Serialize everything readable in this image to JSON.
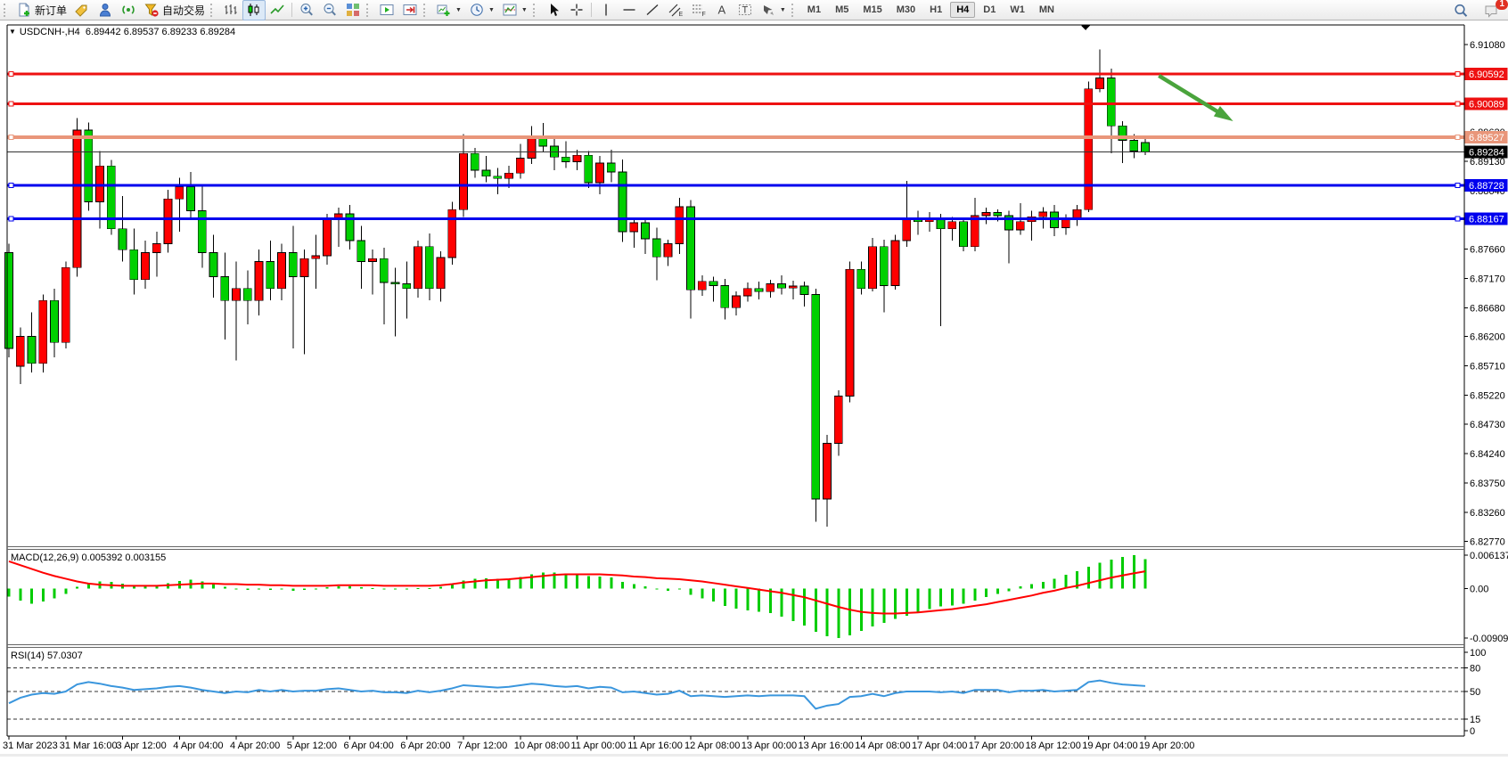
{
  "toolbar": {
    "new_order_label": "新订单",
    "autotrading_label": "自动交易",
    "periods": [
      "M1",
      "M5",
      "M15",
      "M30",
      "H1",
      "H4",
      "D1",
      "W1",
      "MN"
    ],
    "active_period": "H4",
    "notification_badge": "1",
    "icon_names": [
      "new-order",
      "quotes-tag",
      "community",
      "signals",
      "autotrading",
      "bar-chart-type",
      "candlestick-chart-type",
      "line-chart-type",
      "zoom-in",
      "zoom-out",
      "tile-windows",
      "auto-scroll",
      "chart-shift",
      "new-chart",
      "timeframe-clock",
      "indicators",
      "cursor",
      "crosshair",
      "vertical-line",
      "horizontal-line",
      "trendline",
      "equidistant-channel",
      "fibonacci",
      "text",
      "text-label",
      "arrows",
      "search",
      "chat"
    ]
  },
  "chart": {
    "title": "USDCNH-,H4",
    "ohlc_line": "6.89442 6.89537 6.89233 6.89284",
    "macd_label": "MACD(12,26,9) 0.005392 0.003155",
    "rsi_label": "RSI(14) 57.0307"
  },
  "price_axis": {
    "ticks": [
      {
        "label": "6.91080",
        "price": 6.9108
      },
      {
        "label": "6.89620",
        "price": 6.8962
      },
      {
        "label": "6.89130",
        "price": 6.8913
      },
      {
        "label": "6.88640",
        "price": 6.8864
      },
      {
        "label": "6.87660",
        "price": 6.8766
      },
      {
        "label": "6.87170",
        "price": 6.8717
      },
      {
        "label": "6.86680",
        "price": 6.8668
      },
      {
        "label": "6.86200",
        "price": 6.862
      },
      {
        "label": "6.85710",
        "price": 6.8571
      },
      {
        "label": "6.85220",
        "price": 6.8522
      },
      {
        "label": "6.84730",
        "price": 6.8473
      },
      {
        "label": "6.84240",
        "price": 6.8424
      },
      {
        "label": "6.83750",
        "price": 6.8375
      },
      {
        "label": "6.83260",
        "price": 6.8326
      },
      {
        "label": "6.82770",
        "price": 6.8277
      }
    ]
  },
  "hlines": [
    {
      "label": "6.90592",
      "price": 6.90592,
      "color": "#ee1111",
      "width": 3
    },
    {
      "label": "6.90089",
      "price": 6.90089,
      "color": "#ee1111",
      "width": 3
    },
    {
      "label": "6.89527",
      "price": 6.89527,
      "color": "#e9967a",
      "width": 4
    },
    {
      "label": "6.88728",
      "price": 6.88728,
      "color": "#0000ee",
      "width": 3
    },
    {
      "label": "6.88167",
      "price": 6.88167,
      "color": "#0000ee",
      "width": 3
    }
  ],
  "current_price": {
    "label": "6.89284",
    "price": 6.89284
  },
  "time_axis": {
    "every_n_candles": 5,
    "labels": [
      "31 Mar 2023",
      "31 Mar 16:00",
      "3 Apr 12:00",
      "4 Apr 04:00",
      "4 Apr 20:00",
      "5 Apr 12:00",
      "6 Apr 04:00",
      "6 Apr 20:00",
      "7 Apr 12:00",
      "10 Apr 08:00",
      "11 Apr 00:00",
      "11 Apr 16:00",
      "12 Apr 08:00",
      "13 Apr 00:00",
      "13 Apr 16:00",
      "14 Apr 08:00",
      "17 Apr 04:00",
      "17 Apr 20:00",
      "18 Apr 12:00",
      "19 Apr 04:00",
      "19 Apr 20:00"
    ]
  },
  "macd_axis": {
    "ticks": [
      {
        "label": "0.006137",
        "value": 0.006137
      },
      {
        "label": "0.00",
        "value": 0
      },
      {
        "label": "-0.009098",
        "value": -0.009098
      }
    ]
  },
  "rsi_axis": {
    "ticks": [
      {
        "label": "100",
        "value": 100
      },
      {
        "label": "80",
        "value": 80
      },
      {
        "label": "50",
        "value": 50
      },
      {
        "label": "15",
        "value": 15
      },
      {
        "label": "0",
        "value": 0
      }
    ],
    "dashed_levels": [
      80,
      50,
      15
    ]
  },
  "chart_data": {
    "type": "candlestick",
    "symbol": "USDCNH",
    "timeframe": "H4",
    "title": "USDCNH-,H4",
    "ylim": [
      6.82706,
      6.91408
    ],
    "grid": false,
    "colors": {
      "up": "#ff0000",
      "down": "#00d000",
      "wick": "#000000",
      "macd_hist": "#00cc00",
      "macd_signal": "#ff0000",
      "rsi": "#3a96dd",
      "axis": "#000000"
    },
    "candles": [
      [
        6.876,
        6.8775,
        6.8585,
        6.86
      ],
      [
        6.857,
        6.8635,
        6.854,
        6.862
      ],
      [
        6.862,
        6.866,
        6.856,
        6.8575
      ],
      [
        6.8575,
        6.869,
        6.856,
        6.868
      ],
      [
        6.868,
        6.87,
        6.8585,
        6.861
      ],
      [
        6.861,
        6.8745,
        6.86,
        6.8735
      ],
      [
        6.8735,
        6.8985,
        6.872,
        6.8965
      ],
      [
        6.8965,
        6.8978,
        6.883,
        6.8845
      ],
      [
        6.8845,
        6.893,
        6.88,
        6.8905
      ],
      [
        6.8905,
        6.8915,
        6.879,
        6.88
      ],
      [
        6.88,
        6.8855,
        6.8745,
        6.8765
      ],
      [
        6.8765,
        6.88,
        6.869,
        6.8715
      ],
      [
        6.8715,
        6.878,
        6.87,
        6.876
      ],
      [
        6.876,
        6.8795,
        6.872,
        6.8775
      ],
      [
        6.8775,
        6.8865,
        6.876,
        6.885
      ],
      [
        6.885,
        6.8885,
        6.8795,
        6.887
      ],
      [
        6.887,
        6.8895,
        6.8815,
        6.883
      ],
      [
        6.883,
        6.887,
        6.8735,
        6.876
      ],
      [
        6.876,
        6.879,
        6.8685,
        6.872
      ],
      [
        6.872,
        6.876,
        6.8615,
        6.868
      ],
      [
        6.868,
        6.8745,
        6.858,
        6.87
      ],
      [
        6.87,
        6.873,
        6.864,
        6.868
      ],
      [
        6.868,
        6.8765,
        6.8655,
        6.8745
      ],
      [
        6.8745,
        6.878,
        6.868,
        6.87
      ],
      [
        6.87,
        6.8775,
        6.868,
        6.876
      ],
      [
        6.876,
        6.8805,
        6.86,
        6.872
      ],
      [
        6.872,
        6.8765,
        6.859,
        6.875
      ],
      [
        6.875,
        6.879,
        6.87,
        6.8755
      ],
      [
        6.8755,
        6.8825,
        6.874,
        6.8815
      ],
      [
        6.8815,
        6.8835,
        6.877,
        6.8825
      ],
      [
        6.8825,
        6.884,
        6.8765,
        6.878
      ],
      [
        6.878,
        6.8805,
        6.87,
        6.8745
      ],
      [
        6.8745,
        6.8765,
        6.869,
        6.875
      ],
      [
        6.875,
        6.8768,
        6.864,
        6.871
      ],
      [
        6.871,
        6.8735,
        6.862,
        6.8708
      ],
      [
        6.8708,
        6.8745,
        6.865,
        6.87
      ],
      [
        6.87,
        6.878,
        6.8685,
        6.877
      ],
      [
        6.877,
        6.8792,
        6.868,
        6.87
      ],
      [
        6.87,
        6.8762,
        6.8678,
        6.8752
      ],
      [
        6.8752,
        6.8845,
        6.874,
        6.8832
      ],
      [
        6.8832,
        6.8958,
        6.882,
        6.8926
      ],
      [
        6.8926,
        6.8935,
        6.8885,
        6.8898
      ],
      [
        6.8898,
        6.8922,
        6.8878,
        6.8888
      ],
      [
        6.8888,
        6.8902,
        6.8858,
        6.8884
      ],
      [
        6.8884,
        6.8905,
        6.8868,
        6.8893
      ],
      [
        6.8893,
        6.8942,
        6.8884,
        6.8918
      ],
      [
        6.8918,
        6.8972,
        6.8908,
        6.8951
      ],
      [
        6.8951,
        6.8977,
        6.8928,
        6.8938
      ],
      [
        6.8938,
        6.8952,
        6.8898,
        6.892
      ],
      [
        6.892,
        6.8946,
        6.8902,
        6.8912
      ],
      [
        6.8912,
        6.8932,
        6.8898,
        6.8923
      ],
      [
        6.8923,
        6.893,
        6.8868,
        6.8877
      ],
      [
        6.8877,
        6.8922,
        6.8858,
        6.891
      ],
      [
        6.891,
        6.8932,
        6.8878,
        6.8895
      ],
      [
        6.8895,
        6.8916,
        6.8778,
        6.8795
      ],
      [
        6.8795,
        6.8818,
        6.8768,
        6.881
      ],
      [
        6.881,
        6.8819,
        6.8758,
        6.8783
      ],
      [
        6.8783,
        6.8802,
        6.8714,
        6.8753
      ],
      [
        6.8753,
        6.8782,
        6.8738,
        6.8775
      ],
      [
        6.8775,
        6.8852,
        6.8758,
        6.8837
      ],
      [
        6.8837,
        6.8848,
        6.865,
        6.8698
      ],
      [
        6.8698,
        6.8722,
        6.8688,
        6.8712
      ],
      [
        6.8712,
        6.872,
        6.8678,
        6.8705
      ],
      [
        6.8705,
        6.8716,
        6.8648,
        6.8668
      ],
      [
        6.8668,
        6.8695,
        6.8655,
        6.8688
      ],
      [
        6.8688,
        6.871,
        6.8678,
        6.87
      ],
      [
        6.87,
        6.8712,
        6.8682,
        6.8695
      ],
      [
        6.8695,
        6.8715,
        6.8685,
        6.8708
      ],
      [
        6.8708,
        6.8722,
        6.869,
        6.8701
      ],
      [
        6.8701,
        6.8713,
        6.8682,
        6.8704
      ],
      [
        6.8704,
        6.8712,
        6.867,
        6.869
      ],
      [
        6.869,
        6.87,
        6.831,
        6.8348
      ],
      [
        6.8348,
        6.8455,
        6.8302,
        6.8441
      ],
      [
        6.8441,
        6.853,
        6.842,
        6.852
      ],
      [
        6.852,
        6.8745,
        6.851,
        6.8732
      ],
      [
        6.8732,
        6.8745,
        6.869,
        6.87
      ],
      [
        6.87,
        6.8785,
        6.8695,
        6.877
      ],
      [
        6.877,
        6.8782,
        6.866,
        6.8705
      ],
      [
        6.8705,
        6.879,
        6.8698,
        6.878
      ],
      [
        6.878,
        6.888,
        6.877,
        6.8815
      ],
      [
        6.8815,
        6.883,
        6.879,
        6.8812
      ],
      [
        6.8812,
        6.8828,
        6.8795,
        6.8818
      ],
      [
        6.8818,
        6.8825,
        6.8637,
        6.88
      ],
      [
        6.88,
        6.882,
        6.878,
        6.8812
      ],
      [
        6.8812,
        6.8818,
        6.8762,
        6.877
      ],
      [
        6.877,
        6.8852,
        6.8762,
        6.8822
      ],
      [
        6.8822,
        6.8835,
        6.8808,
        6.8827
      ],
      [
        6.8827,
        6.8832,
        6.8812,
        6.8822
      ],
      [
        6.8822,
        6.883,
        6.8742,
        6.8798
      ],
      [
        6.8798,
        6.8843,
        6.879,
        6.8812
      ],
      [
        6.8812,
        6.883,
        6.878,
        6.882
      ],
      [
        6.882,
        6.8836,
        6.88,
        6.8828
      ],
      [
        6.8828,
        6.884,
        6.8788,
        6.8802
      ],
      [
        6.8802,
        6.8824,
        6.879,
        6.8818
      ],
      [
        6.8818,
        6.884,
        6.8805,
        6.8832
      ],
      [
        6.8832,
        6.9046,
        6.8828,
        6.9034
      ],
      [
        6.9034,
        6.91,
        6.9028,
        6.9052
      ],
      [
        6.9052,
        6.9068,
        6.8926,
        6.8972
      ],
      [
        6.8972,
        6.898,
        6.891,
        6.8948
      ],
      [
        6.8948,
        6.8958,
        6.8918,
        6.893
      ],
      [
        6.89442,
        6.89537,
        6.89233,
        6.89284
      ]
    ],
    "macd": {
      "params": "12,26,9",
      "current_macd": 0.005392,
      "current_signal": 0.003155,
      "range": [
        -0.010102,
        0.007119
      ],
      "histogram": [
        -0.0015,
        -0.0022,
        -0.0028,
        -0.0024,
        -0.0018,
        -0.001,
        0.0003,
        0.001,
        0.0013,
        0.0012,
        0.0009,
        0.0006,
        0.0004,
        0.0006,
        0.001,
        0.0014,
        0.0016,
        0.0013,
        0.0008,
        0.0003,
        0.0,
        -0.0003,
        -0.0002,
        -0.0003,
        -0.0002,
        -0.0004,
        -0.0003,
        -0.0001,
        0.0002,
        0.0004,
        0.0004,
        0.0002,
        0.0001,
        -0.0001,
        -0.0002,
        -0.0002,
        0.0001,
        0.0001,
        0.0003,
        0.0008,
        0.0015,
        0.0018,
        0.0019,
        0.0018,
        0.0018,
        0.0021,
        0.0026,
        0.0029,
        0.0029,
        0.0028,
        0.0027,
        0.0023,
        0.0022,
        0.002,
        0.0012,
        0.0008,
        0.0004,
        -0.0002,
        -0.0004,
        -0.0002,
        -0.0012,
        -0.0018,
        -0.0024,
        -0.0032,
        -0.0037,
        -0.004,
        -0.0043,
        -0.0045,
        -0.0052,
        -0.006,
        -0.0068,
        -0.008,
        -0.0088,
        -0.0091,
        -0.0086,
        -0.0078,
        -0.007,
        -0.0063,
        -0.0056,
        -0.005,
        -0.0045,
        -0.0038,
        -0.0033,
        -0.0031,
        -0.0028,
        -0.0022,
        -0.0016,
        -0.001,
        -0.0005,
        0.0004,
        0.0008,
        0.0012,
        0.0018,
        0.0025,
        0.0032,
        0.004,
        0.0047,
        0.0053,
        0.0058,
        0.0061,
        0.005392
      ],
      "signal": [
        0.005,
        0.0043,
        0.0036,
        0.0029,
        0.0023,
        0.0018,
        0.0013,
        0.0009,
        0.0007,
        0.0006,
        0.0005,
        0.0005,
        0.0005,
        0.0005,
        0.0006,
        0.0007,
        0.0008,
        0.0009,
        0.0009,
        0.0008,
        0.0008,
        0.0007,
        0.0007,
        0.0006,
        0.0006,
        0.0005,
        0.0005,
        0.0005,
        0.0005,
        0.0006,
        0.0006,
        0.0006,
        0.0006,
        0.0005,
        0.0005,
        0.0005,
        0.0005,
        0.0005,
        0.0006,
        0.0008,
        0.0011,
        0.0013,
        0.0015,
        0.0016,
        0.0017,
        0.0019,
        0.0021,
        0.0023,
        0.0025,
        0.0026,
        0.0026,
        0.0026,
        0.0026,
        0.0025,
        0.0024,
        0.0022,
        0.0021,
        0.0019,
        0.0018,
        0.0017,
        0.0015,
        0.0013,
        0.001,
        0.0007,
        0.0004,
        0.0001,
        -0.0002,
        -0.0005,
        -0.0008,
        -0.0012,
        -0.0016,
        -0.0022,
        -0.0028,
        -0.0034,
        -0.0039,
        -0.0043,
        -0.0045,
        -0.0046,
        -0.0046,
        -0.0045,
        -0.0044,
        -0.0042,
        -0.004,
        -0.0038,
        -0.0035,
        -0.0032,
        -0.0029,
        -0.0025,
        -0.0021,
        -0.0017,
        -0.0013,
        -0.0008,
        -0.0004,
        0.0001,
        0.0005,
        0.001,
        0.0015,
        0.002,
        0.0024,
        0.0028,
        0.003155
      ]
    },
    "rsi": {
      "period": 14,
      "current": 57.0307,
      "range": [
        0,
        100
      ],
      "values": [
        35,
        42,
        46,
        48,
        47,
        50,
        59,
        62,
        60,
        57,
        55,
        52,
        53,
        54,
        56,
        57,
        55,
        52,
        50,
        48,
        50,
        49,
        52,
        50,
        52,
        50,
        51,
        51,
        53,
        54,
        52,
        50,
        51,
        49,
        49,
        48,
        51,
        49,
        51,
        54,
        58,
        57,
        56,
        55,
        56,
        58,
        60,
        59,
        57,
        56,
        57,
        54,
        56,
        55,
        49,
        50,
        48,
        46,
        47,
        51,
        44,
        45,
        44,
        43,
        44,
        45,
        44,
        45,
        45,
        45,
        44,
        28,
        32,
        34,
        43,
        44,
        47,
        44,
        48,
        50,
        50,
        50,
        49,
        50,
        48,
        52,
        52,
        52,
        49,
        51,
        51,
        52,
        50,
        51,
        52,
        62,
        64,
        61,
        59,
        58,
        57.03
      ]
    }
  },
  "annotations": {
    "arrow": {
      "from_index": 101.2,
      "from_price": 6.9056,
      "to_index": 107.6,
      "to_price": 6.89815,
      "color": "#4aa43c"
    },
    "shift_marker_index": 94.75
  }
}
